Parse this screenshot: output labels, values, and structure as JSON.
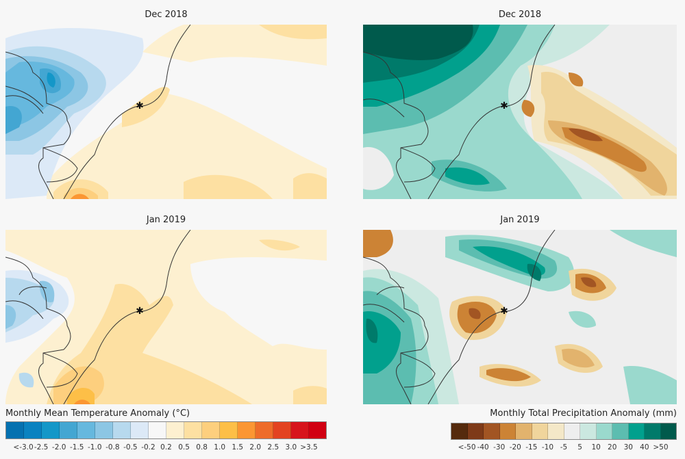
{
  "panels": [
    {
      "id": "temp-dec",
      "title": "Dec 2018",
      "variable": "temperature"
    },
    {
      "id": "precip-dec",
      "title": "Dec 2018",
      "variable": "precipitation"
    },
    {
      "id": "temp-jan",
      "title": "Jan 2019",
      "variable": "temperature"
    },
    {
      "id": "precip-jan",
      "title": "Jan 2019",
      "variable": "precipitation"
    }
  ],
  "marker": {
    "symbol": "star-marker"
  },
  "temperature_colorbar": {
    "title": "Monthly Mean Temperature Anomaly (°C)",
    "labels": [
      "<-3.0",
      "-2.5",
      "-2.0",
      "-1.5",
      "-1.0",
      "-0.8",
      "-0.5",
      "-0.2",
      "0.2",
      "0.5",
      "0.8",
      "1.0",
      "1.5",
      "2.0",
      "2.5",
      "3.0",
      ">3.5"
    ],
    "colors": [
      "#0571b0",
      "#0a82c0",
      "#1497c8",
      "#43a6d2",
      "#66b8de",
      "#8cc6e4",
      "#b7d9ee",
      "#dce9f7",
      "#f7f7f7",
      "#fdf0d0",
      "#fde0a2",
      "#fdcf7e",
      "#fdbf47",
      "#fb9633",
      "#ee6c2a",
      "#e34321",
      "#d7141c",
      "#d10012"
    ]
  },
  "precipitation_colorbar": {
    "title": "Monthly Total Precipitation Anomaly (mm)",
    "labels": [
      "<-50",
      "-40",
      "-30",
      "-20",
      "-15",
      "-10",
      "-5",
      "5",
      "10",
      "20",
      "30",
      "40",
      ">50"
    ],
    "colors": [
      "#552a0d",
      "#7e3a18",
      "#a25523",
      "#cc8335",
      "#e2b36d",
      "#f0d59c",
      "#f4e8c8",
      "#eeeeee",
      "#cbe8e0",
      "#9ad9cd",
      "#5cbdb0",
      "#01a08d",
      "#007a6a",
      "#005a4c"
    ]
  }
}
